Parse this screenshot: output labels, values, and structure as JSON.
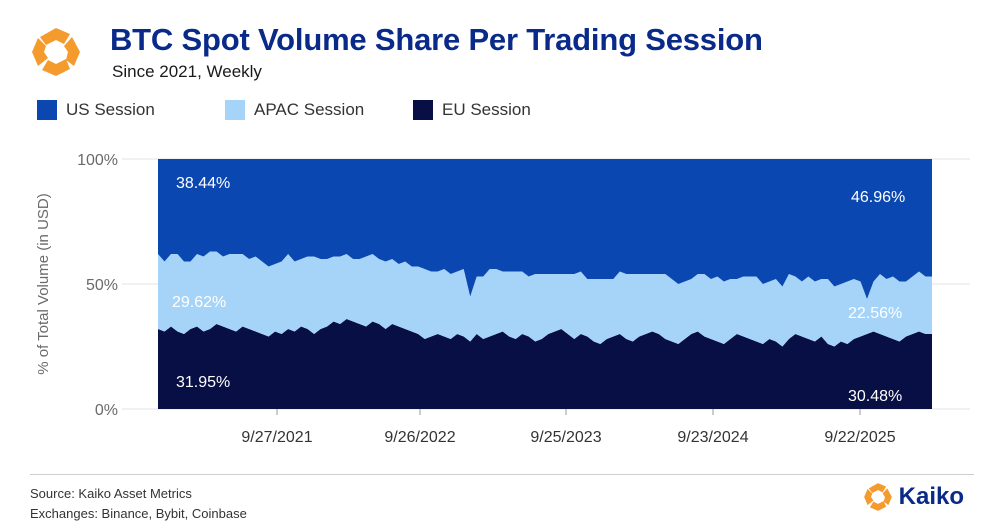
{
  "header": {
    "title": "BTC Spot Volume Share Per Trading Session",
    "subtitle": "Since 2021, Weekly"
  },
  "legend": {
    "us": "US Session",
    "apac": "APAC Session",
    "eu": "EU Session"
  },
  "colors": {
    "us": "#0a47b0",
    "apac": "#a5d4f8",
    "eu": "#070f45",
    "brand_orange": "#f59a2c",
    "brand_blue": "#0a2a8a"
  },
  "chart_data": {
    "type": "area",
    "stacked": true,
    "title": "BTC Spot Volume Share Per Trading Session",
    "subtitle": "Since 2021, Weekly",
    "xlabel": "",
    "ylabel": "% of Total Volume (in USD)",
    "ylim": [
      0,
      100
    ],
    "yticks": [
      "0%",
      "50%",
      "100%"
    ],
    "xticks": [
      "9/27/2021",
      "9/26/2022",
      "9/25/2023",
      "9/23/2024",
      "9/22/2025"
    ],
    "x_range": [
      "2021-01",
      "2025-12"
    ],
    "series": [
      {
        "name": "EU Session",
        "color": "#070f45",
        "annotations": {
          "first": "31.95%",
          "last": "30.48%"
        },
        "values": [
          32,
          31,
          33,
          31,
          30,
          32,
          33,
          31,
          32,
          34,
          33,
          32,
          31,
          33,
          32,
          31,
          30,
          29,
          31,
          30,
          32,
          31,
          33,
          32,
          30,
          32,
          33,
          35,
          34,
          36,
          35,
          34,
          33,
          35,
          34,
          32,
          34,
          33,
          32,
          31,
          30,
          28,
          29,
          30,
          29,
          28,
          30,
          29,
          27,
          30,
          28,
          29,
          30,
          31,
          29,
          28,
          30,
          29,
          27,
          28,
          30,
          31,
          32,
          30,
          28,
          30,
          29,
          27,
          26,
          28,
          29,
          30,
          28,
          27,
          29,
          30,
          31,
          30,
          28,
          27,
          26,
          28,
          30,
          31,
          29,
          28,
          27,
          26,
          28,
          30,
          29,
          28,
          27,
          26,
          28,
          27,
          25,
          28,
          30,
          29,
          28,
          27,
          29,
          26,
          25,
          27,
          26,
          28,
          29,
          30,
          31,
          30,
          29,
          28,
          27,
          29,
          30,
          31,
          30,
          30
        ]
      },
      {
        "name": "APAC Session",
        "color": "#a5d4f8",
        "annotations": {
          "first": "29.62%",
          "last": "22.56%"
        },
        "values": [
          30,
          28,
          29,
          31,
          29,
          27,
          29,
          30,
          31,
          29,
          28,
          30,
          31,
          29,
          28,
          30,
          29,
          28,
          27,
          29,
          30,
          28,
          27,
          29,
          31,
          28,
          27,
          26,
          27,
          26,
          25,
          26,
          28,
          27,
          26,
          27,
          26,
          25,
          27,
          26,
          27,
          28,
          26,
          25,
          27,
          26,
          25,
          27,
          18,
          23,
          25,
          27,
          26,
          24,
          26,
          27,
          25,
          24,
          27,
          26,
          24,
          23,
          22,
          24,
          26,
          25,
          23,
          25,
          26,
          24,
          23,
          25,
          26,
          27,
          25,
          24,
          23,
          24,
          26,
          25,
          24,
          23,
          22,
          23,
          25,
          24,
          26,
          25,
          24,
          22,
          24,
          25,
          26,
          24,
          23,
          25,
          24,
          26,
          23,
          22,
          25,
          24,
          23,
          26,
          24,
          23,
          25,
          24,
          22,
          14,
          20,
          24,
          23,
          25,
          24,
          22,
          23,
          24,
          23,
          23
        ]
      },
      {
        "name": "US Session",
        "color": "#0a47b0",
        "annotations": {
          "first": "38.44%",
          "last": "46.96%"
        },
        "values": [
          38,
          41,
          38,
          38,
          41,
          41,
          38,
          39,
          37,
          37,
          39,
          38,
          38,
          38,
          40,
          39,
          41,
          43,
          42,
          41,
          38,
          41,
          40,
          39,
          39,
          40,
          40,
          39,
          39,
          38,
          40,
          40,
          39,
          38,
          40,
          41,
          40,
          42,
          41,
          43,
          43,
          44,
          45,
          45,
          44,
          46,
          45,
          44,
          55,
          47,
          47,
          44,
          44,
          45,
          45,
          45,
          45,
          47,
          46,
          46,
          46,
          46,
          46,
          46,
          46,
          45,
          48,
          48,
          48,
          48,
          48,
          45,
          46,
          46,
          46,
          46,
          46,
          46,
          46,
          48,
          50,
          49,
          48,
          46,
          46,
          48,
          47,
          49,
          48,
          48,
          47,
          47,
          47,
          50,
          49,
          48,
          51,
          46,
          47,
          49,
          47,
          49,
          48,
          48,
          51,
          50,
          49,
          48,
          49,
          56,
          49,
          46,
          48,
          47,
          49,
          49,
          47,
          45,
          47,
          47
        ]
      }
    ]
  },
  "footer": {
    "source": "Source: Kaiko Asset Metrics",
    "exchanges": "Exchanges: Binance, Bybit, Coinbase",
    "brand": "Kaiko"
  }
}
